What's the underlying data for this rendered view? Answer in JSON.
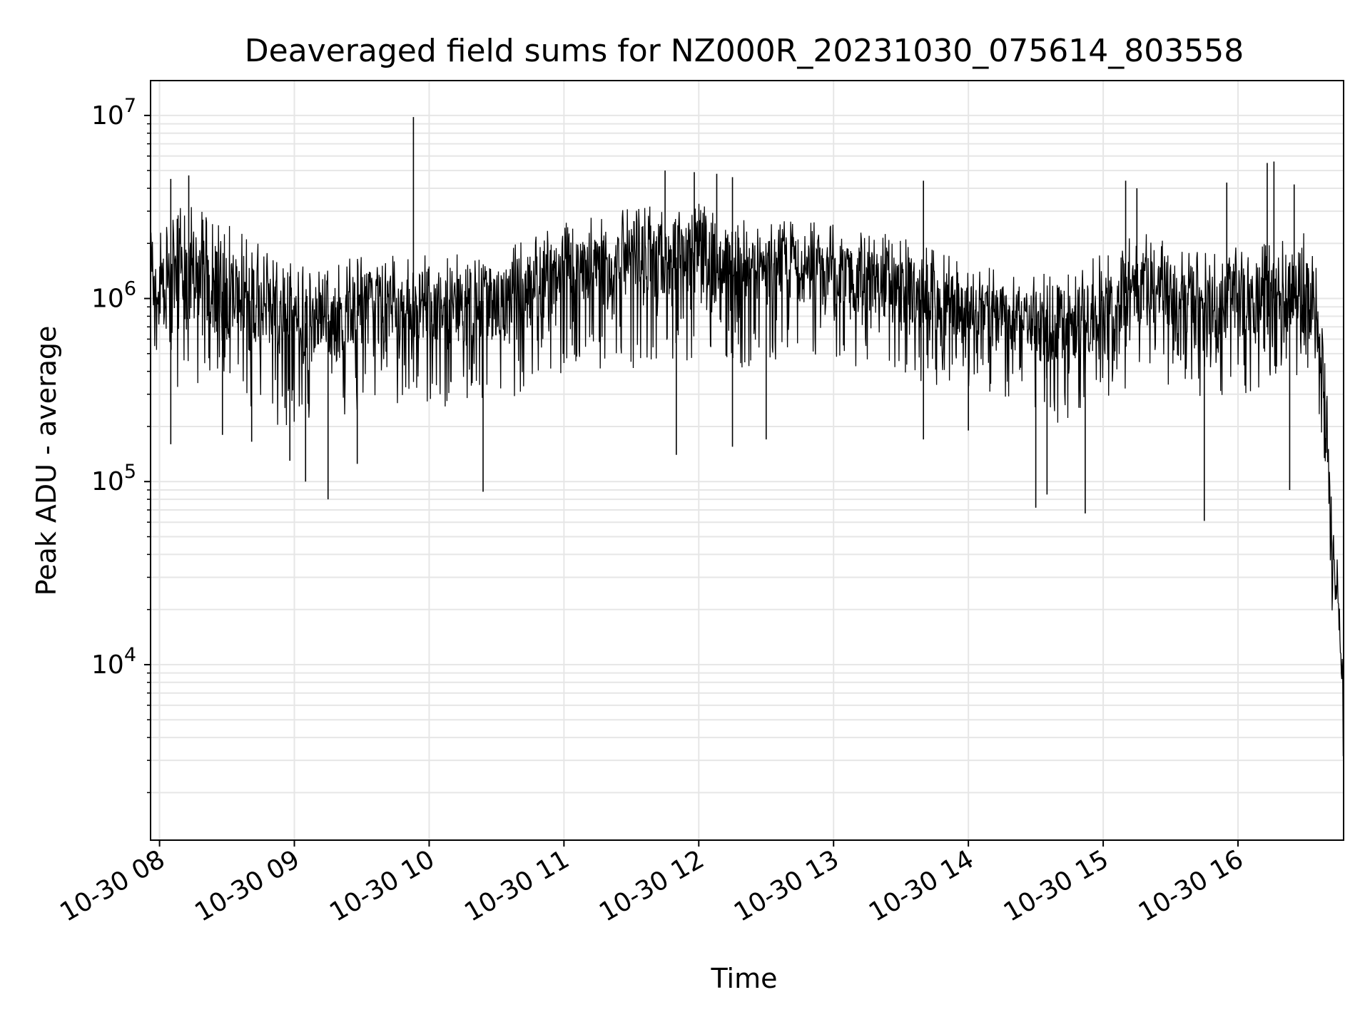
{
  "chart_data": {
    "type": "line",
    "title": "Deaveraged field sums for NZ000R_20231030_075614_803558",
    "xlabel": "Time",
    "ylabel": "Peak ADU - average",
    "x_scale": "time",
    "y_scale": "log",
    "xlim": [
      "2023-10-30 07:56",
      "2023-10-30 16:47"
    ],
    "ylim": [
      1100,
      15500000
    ],
    "grid": true,
    "line_color": "#000000",
    "grid_color": "#e6e6e6",
    "x_ticks": [
      {
        "value": "2023-10-30 08:00",
        "label": "10-30 08"
      },
      {
        "value": "2023-10-30 09:00",
        "label": "10-30 09"
      },
      {
        "value": "2023-10-30 10:00",
        "label": "10-30 10"
      },
      {
        "value": "2023-10-30 11:00",
        "label": "10-30 11"
      },
      {
        "value": "2023-10-30 12:00",
        "label": "10-30 12"
      },
      {
        "value": "2023-10-30 13:00",
        "label": "10-30 13"
      },
      {
        "value": "2023-10-30 14:00",
        "label": "10-30 14"
      },
      {
        "value": "2023-10-30 15:00",
        "label": "10-30 15"
      },
      {
        "value": "2023-10-30 16:00",
        "label": "10-30 16"
      }
    ],
    "y_ticks": [
      {
        "value": 10000,
        "base": "10",
        "exp": "4"
      },
      {
        "value": 100000,
        "base": "10",
        "exp": "5"
      },
      {
        "value": 1000000,
        "base": "10",
        "exp": "6"
      },
      {
        "value": 10000000,
        "base": "10",
        "exp": "7"
      }
    ],
    "series": [
      {
        "envelope": [
          {
            "x": "2023-10-30 07:56",
            "low": 600000,
            "mid": 1050000,
            "high": 2200000
          },
          {
            "x": "2023-10-30 08:10",
            "low": 400000,
            "mid": 1200000,
            "high": 3300000
          },
          {
            "x": "2023-10-30 08:25",
            "low": 420000,
            "mid": 1100000,
            "high": 2600000
          },
          {
            "x": "2023-10-30 08:40",
            "low": 330000,
            "mid": 1050000,
            "high": 2200000
          },
          {
            "x": "2023-10-30 08:55",
            "low": 260000,
            "mid": 800000,
            "high": 1600000
          },
          {
            "x": "2023-10-30 09:10",
            "low": 230000,
            "mid": 700000,
            "high": 1400000
          },
          {
            "x": "2023-10-30 09:25",
            "low": 300000,
            "mid": 850000,
            "high": 1700000
          },
          {
            "x": "2023-10-30 09:40",
            "low": 320000,
            "mid": 900000,
            "high": 1700000
          },
          {
            "x": "2023-10-30 10:00",
            "low": 330000,
            "mid": 920000,
            "high": 1700000
          },
          {
            "x": "2023-10-30 10:20",
            "low": 320000,
            "mid": 950000,
            "high": 1750000
          },
          {
            "x": "2023-10-30 10:40",
            "low": 380000,
            "mid": 1050000,
            "high": 2000000
          },
          {
            "x": "2023-10-30 11:00",
            "low": 480000,
            "mid": 1350000,
            "high": 2600000
          },
          {
            "x": "2023-10-30 11:20",
            "low": 520000,
            "mid": 1500000,
            "high": 2900000
          },
          {
            "x": "2023-10-30 11:40",
            "low": 560000,
            "mid": 1650000,
            "high": 3100000
          },
          {
            "x": "2023-10-30 12:00",
            "low": 600000,
            "mid": 1700000,
            "high": 3200000
          },
          {
            "x": "2023-10-30 12:20",
            "low": 520000,
            "mid": 1450000,
            "high": 2800000
          },
          {
            "x": "2023-10-30 12:40",
            "low": 560000,
            "mid": 1400000,
            "high": 2600000
          },
          {
            "x": "2023-10-30 13:00",
            "low": 560000,
            "mid": 1350000,
            "high": 2500000
          },
          {
            "x": "2023-10-30 13:20",
            "low": 500000,
            "mid": 1200000,
            "high": 2300000
          },
          {
            "x": "2023-10-30 13:40",
            "low": 420000,
            "mid": 1000000,
            "high": 1900000
          },
          {
            "x": "2023-10-30 14:00",
            "low": 400000,
            "mid": 850000,
            "high": 1500000
          },
          {
            "x": "2023-10-30 14:20",
            "low": 330000,
            "mid": 780000,
            "high": 1400000
          },
          {
            "x": "2023-10-30 14:40",
            "low": 250000,
            "mid": 650000,
            "high": 1300000
          },
          {
            "x": "2023-10-30 15:00",
            "low": 330000,
            "mid": 850000,
            "high": 1700000
          },
          {
            "x": "2023-10-30 15:15",
            "low": 450000,
            "mid": 1200000,
            "high": 2600000
          },
          {
            "x": "2023-10-30 15:35",
            "low": 380000,
            "mid": 950000,
            "high": 1800000
          },
          {
            "x": "2023-10-30 15:55",
            "low": 350000,
            "mid": 950000,
            "high": 1800000
          },
          {
            "x": "2023-10-30 16:15",
            "low": 400000,
            "mid": 1000000,
            "high": 2000000
          },
          {
            "x": "2023-10-30 16:30",
            "low": 400000,
            "mid": 1000000,
            "high": 2200000
          },
          {
            "x": "2023-10-30 16:35",
            "low": 300000,
            "mid": 900000,
            "high": 1800000
          },
          {
            "x": "2023-10-30 16:38",
            "low": 100000,
            "mid": 300000,
            "high": 600000
          },
          {
            "x": "2023-10-30 16:40",
            "low": 60000,
            "mid": 150000,
            "high": 250000
          },
          {
            "x": "2023-10-30 16:42",
            "low": 20000,
            "mid": 35000,
            "high": 55000
          },
          {
            "x": "2023-10-30 16:44",
            "low": 14000,
            "mid": 25000,
            "high": 40000
          },
          {
            "x": "2023-10-30 16:45",
            "low": 9000,
            "mid": 18000,
            "high": 32000
          },
          {
            "x": "2023-10-30 16:46",
            "low": 5000,
            "mid": 9000,
            "high": 16000
          },
          {
            "x": "2023-10-30 16:47",
            "low": 1700,
            "mid": 3000,
            "high": 6000
          }
        ],
        "spikes": [
          {
            "x": "2023-10-30 08:05",
            "y": 4500000
          },
          {
            "x": "2023-10-30 08:13",
            "y": 4700000
          },
          {
            "x": "2023-10-30 08:05",
            "y": 160000
          },
          {
            "x": "2023-10-30 08:28",
            "y": 180000
          },
          {
            "x": "2023-10-30 08:41",
            "y": 165000
          },
          {
            "x": "2023-10-30 08:58",
            "y": 130000
          },
          {
            "x": "2023-10-30 09:05",
            "y": 100000
          },
          {
            "x": "2023-10-30 09:15",
            "y": 80000
          },
          {
            "x": "2023-10-30 09:28",
            "y": 125000
          },
          {
            "x": "2023-10-30 09:53",
            "y": 9800000
          },
          {
            "x": "2023-10-30 10:24",
            "y": 88000
          },
          {
            "x": "2023-10-30 11:45",
            "y": 5000000
          },
          {
            "x": "2023-10-30 11:58",
            "y": 4900000
          },
          {
            "x": "2023-10-30 12:08",
            "y": 4800000
          },
          {
            "x": "2023-10-30 12:15",
            "y": 4600000
          },
          {
            "x": "2023-10-30 11:50",
            "y": 140000
          },
          {
            "x": "2023-10-30 12:15",
            "y": 155000
          },
          {
            "x": "2023-10-30 12:30",
            "y": 170000
          },
          {
            "x": "2023-10-30 13:40",
            "y": 4400000
          },
          {
            "x": "2023-10-30 13:40",
            "y": 170000
          },
          {
            "x": "2023-10-30 14:00",
            "y": 190000
          },
          {
            "x": "2023-10-30 14:30",
            "y": 72000
          },
          {
            "x": "2023-10-30 14:35",
            "y": 85000
          },
          {
            "x": "2023-10-30 14:52",
            "y": 67000
          },
          {
            "x": "2023-10-30 15:10",
            "y": 4400000
          },
          {
            "x": "2023-10-30 15:15",
            "y": 4000000
          },
          {
            "x": "2023-10-30 15:45",
            "y": 61000
          },
          {
            "x": "2023-10-30 15:55",
            "y": 4300000
          },
          {
            "x": "2023-10-30 16:13",
            "y": 5500000
          },
          {
            "x": "2023-10-30 16:16",
            "y": 5600000
          },
          {
            "x": "2023-10-30 16:25",
            "y": 4200000
          },
          {
            "x": "2023-10-30 16:23",
            "y": 90000
          }
        ]
      }
    ]
  }
}
